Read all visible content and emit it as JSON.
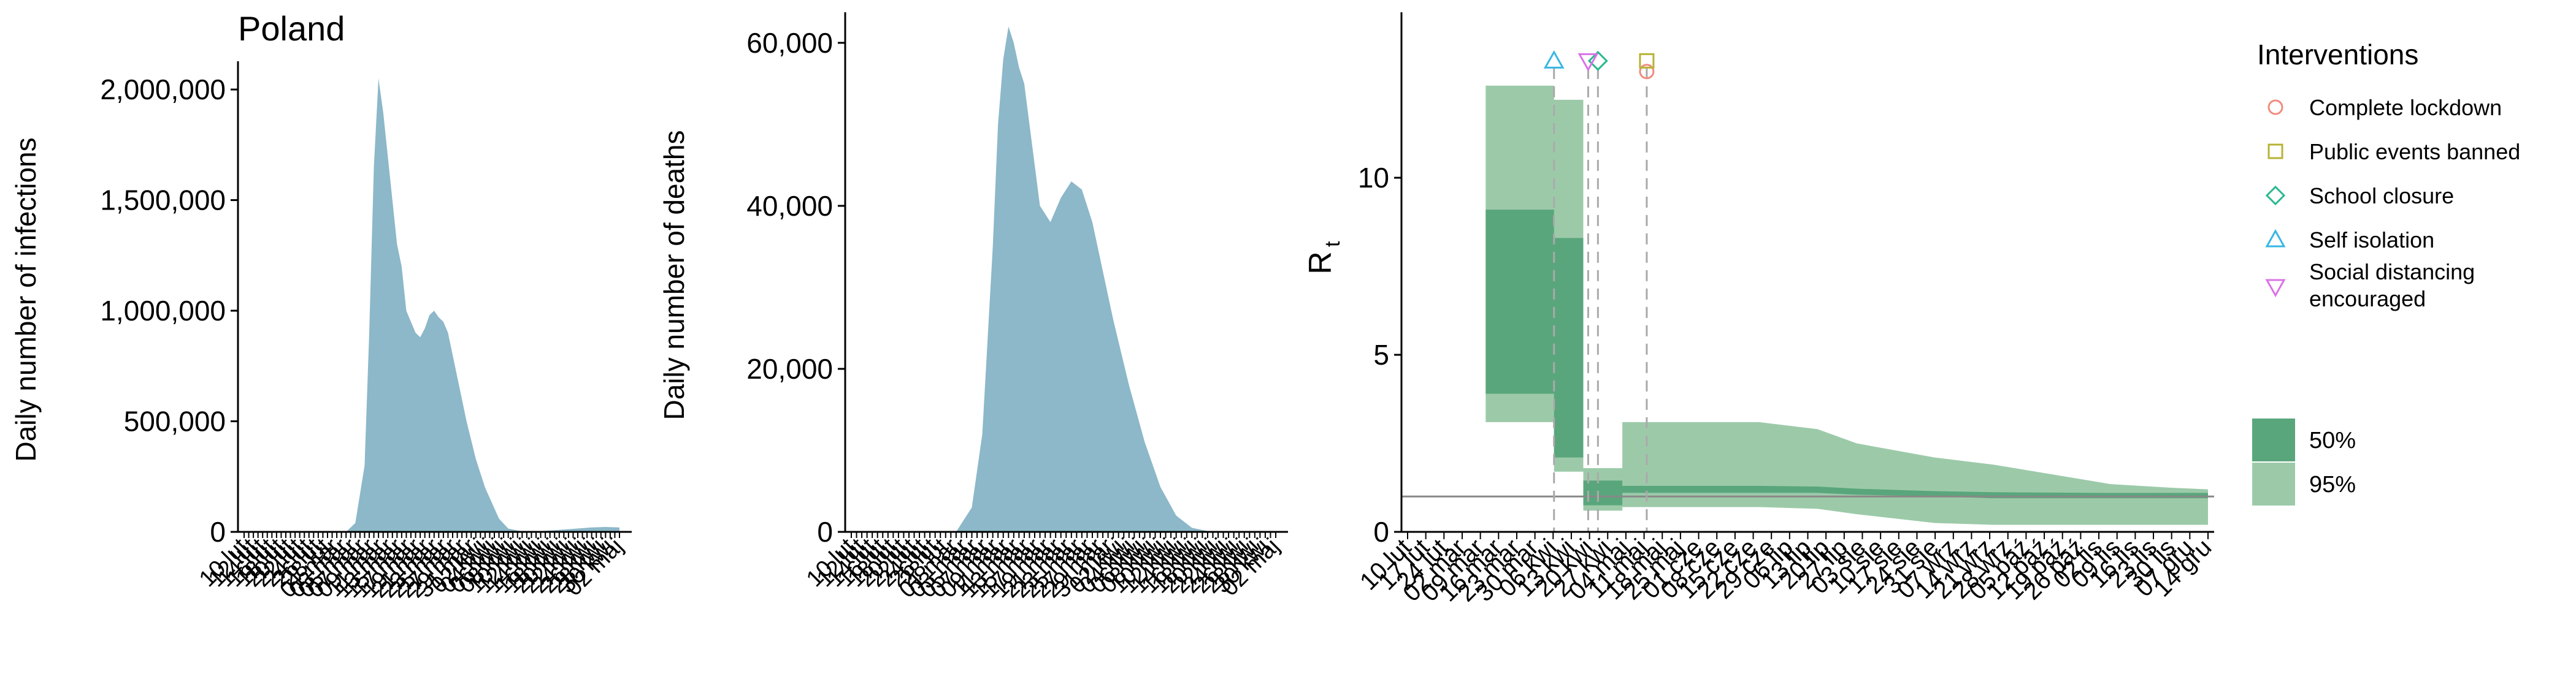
{
  "title": "Poland",
  "colors": {
    "infection_fill": "#8cb8c9",
    "deaths_fill": "#8cb8c9",
    "ci50": "#5aa67c",
    "ci95": "#9ccaa9",
    "baseline": "#888888",
    "guide": "#aaaaaa",
    "lockdown": "#f08c7c",
    "events": "#b7b335",
    "school": "#29b890",
    "isolation": "#38b6e4",
    "distancing": "#d973e6"
  },
  "chart_data": [
    {
      "type": "area",
      "name": "infections",
      "xlabel": "",
      "ylabel": "Daily number of infections",
      "ylim": [
        0,
        2100000
      ],
      "yticks": [
        0,
        500000,
        1000000,
        1500000,
        2000000
      ],
      "ytick_labels": [
        "0",
        "500,000",
        "1,000,000",
        "1,500,000",
        "2,000,000"
      ],
      "n_days": 82,
      "x_points": [
        0,
        22,
        24,
        26,
        27,
        28,
        29,
        30,
        31,
        32,
        33,
        34,
        35,
        36,
        37,
        38,
        39,
        40,
        41,
        42,
        43,
        44,
        45,
        46,
        47,
        48,
        50,
        52,
        55,
        57,
        60,
        62,
        65,
        70,
        75,
        78,
        81
      ],
      "values": [
        0,
        0,
        40000,
        300000,
        900000,
        1650000,
        2050000,
        1900000,
        1700000,
        1500000,
        1300000,
        1200000,
        1000000,
        950000,
        900000,
        880000,
        920000,
        980000,
        1000000,
        970000,
        950000,
        900000,
        800000,
        700000,
        600000,
        500000,
        330000,
        200000,
        60000,
        15000,
        2000,
        2000,
        5000,
        12000,
        20000,
        22000,
        20000
      ],
      "tick_labels": [
        "10 lut",
        "12 lut",
        "14 lut",
        "16 lut",
        "18 lut",
        "20 lut",
        "22 lut",
        "24 lut",
        "26 lut",
        "28 lut",
        "01 mar",
        "03 mar",
        "05 mar",
        "07 mar",
        "09 mar",
        "11 mar",
        "13 mar",
        "15 mar",
        "17 mar",
        "19 mar",
        "21 mar",
        "23 mar",
        "25 mar",
        "27 mar",
        "29 mar",
        "31 mar",
        "02 kwi",
        "04 kwi",
        "06 kwi",
        "08 kwi",
        "10 kwi",
        "12 kwi",
        "14 kwi",
        "16 kwi",
        "18 kwi",
        "20 kwi",
        "22 kwi",
        "24 kwi",
        "26 kwi",
        "28 kwi",
        "30 kwi",
        "02 maj"
      ]
    },
    {
      "type": "area",
      "name": "deaths",
      "xlabel": "",
      "ylabel": "Daily number of deaths",
      "ylim": [
        0,
        63000
      ],
      "yticks": [
        0,
        20000,
        40000,
        60000
      ],
      "ytick_labels": [
        "0",
        "20,000",
        "40,000",
        "60,000"
      ],
      "n_days": 82,
      "x_points": [
        0,
        20,
        23,
        25,
        27,
        28,
        29,
        30,
        31,
        32,
        33,
        34,
        35,
        36,
        38,
        40,
        42,
        44,
        46,
        48,
        50,
        53,
        56,
        59,
        62,
        65,
        68,
        72,
        76,
        81
      ],
      "values": [
        0,
        0,
        3000,
        12000,
        35000,
        50000,
        58000,
        62000,
        60000,
        57000,
        55000,
        50000,
        45000,
        40000,
        38000,
        41000,
        43000,
        42000,
        38000,
        32000,
        26000,
        18000,
        11000,
        5500,
        2000,
        500,
        100,
        50,
        20,
        0
      ],
      "tick_labels": [
        "10 lut",
        "12 lut",
        "14 lut",
        "16 lut",
        "18 lut",
        "20 lut",
        "22 lut",
        "24 lut",
        "26 lut",
        "28 lut",
        "01 mar",
        "03 mar",
        "05 mar",
        "07 mar",
        "09 mar",
        "11 mar",
        "13 mar",
        "15 mar",
        "17 mar",
        "19 mar",
        "21 mar",
        "23 mar",
        "25 mar",
        "27 mar",
        "29 mar",
        "31 mar",
        "02 kwi",
        "04 kwi",
        "06 kwi",
        "08 kwi",
        "10 kwi",
        "12 kwi",
        "14 kwi",
        "16 kwi",
        "18 kwi",
        "20 kwi",
        "22 kwi",
        "24 kwi",
        "26 kwi",
        "28 kwi",
        "30 kwi",
        "02 maj"
      ]
    },
    {
      "type": "area",
      "name": "rt",
      "xlabel": "",
      "ylabel": "R",
      "ylabel_sub": "t",
      "ylim": [
        0,
        14.5
      ],
      "yticks": [
        0,
        5,
        10
      ],
      "ytick_labels": [
        "0",
        "5",
        "10"
      ],
      "baseline": 1,
      "x_min": 0,
      "x_max": 82,
      "tick_labels": [
        "10 lut",
        "17 lut",
        "24 lut",
        "02 mar",
        "09 mar",
        "16 mar",
        "23 mar",
        "30 mar",
        "06 kwi",
        "13 kwi",
        "20 kwi",
        "27 kwi",
        "04 maj",
        "11 maj",
        "18 maj",
        "25 maj",
        "01 cze",
        "08 cze",
        "15 cze",
        "22 cze",
        "29 cze",
        "06 lip",
        "13 lip",
        "20 lip",
        "27 lip",
        "03 sie",
        "10 sie",
        "17 sie",
        "24 sie",
        "31 sie",
        "07 wrz",
        "14 wrz",
        "21 wrz",
        "28 wrz",
        "05 paź",
        "12 paź",
        "19 paź",
        "26 paź",
        "02 lis",
        "09 lis",
        "16 lis",
        "23 lis",
        "30 lis",
        "07 gru",
        "14 gru"
      ],
      "ci95": {
        "x": [
          8,
          15,
          15,
          18,
          18,
          22,
          22,
          30,
          36,
          42,
          46,
          54,
          60,
          72,
          78,
          82
        ],
        "low": [
          3.1,
          3.1,
          1.7,
          1.7,
          0.6,
          0.6,
          0.7,
          0.7,
          0.7,
          0.65,
          0.5,
          0.25,
          0.2,
          0.2,
          0.2,
          0.2
        ],
        "high": [
          12.6,
          12.6,
          12.2,
          12.2,
          1.8,
          1.8,
          3.1,
          3.1,
          3.1,
          2.9,
          2.5,
          2.1,
          1.9,
          1.35,
          1.25,
          1.2
        ]
      },
      "ci50": {
        "x": [
          8,
          15,
          15,
          18,
          18,
          22,
          22,
          30,
          36,
          42,
          46,
          54,
          60,
          72,
          78,
          82
        ],
        "low": [
          3.9,
          3.9,
          2.1,
          2.1,
          0.75,
          0.75,
          1.1,
          1.1,
          1.1,
          1.1,
          1.05,
          1.0,
          0.95,
          0.95,
          0.95,
          0.95
        ],
        "high": [
          9.1,
          9.1,
          8.3,
          8.3,
          1.45,
          1.45,
          1.3,
          1.3,
          1.3,
          1.28,
          1.22,
          1.15,
          1.12,
          1.1,
          1.1,
          1.1
        ]
      },
      "interventions": [
        {
          "name": "Complete lockdown",
          "day": 24.5,
          "shape": "circle",
          "y": 13.0
        },
        {
          "name": "Public events banned",
          "day": 24.5,
          "shape": "square",
          "y": 13.3
        },
        {
          "name": "School closure",
          "day": 19.5,
          "shape": "diamond",
          "y": 13.3
        },
        {
          "name": "Self isolation",
          "day": 15,
          "shape": "triangle-up",
          "y": 13.3
        },
        {
          "name": "Social distancing\n encouraged",
          "day": 18.5,
          "shape": "triangle-down",
          "y": 13.3
        }
      ]
    }
  ],
  "legend": {
    "title": "Interventions",
    "items": [
      {
        "label": "Complete lockdown",
        "shape": "circle",
        "color_key": "lockdown"
      },
      {
        "label": "Public events banned",
        "shape": "square",
        "color_key": "events"
      },
      {
        "label": "School closure",
        "shape": "diamond",
        "color_key": "school"
      },
      {
        "label": "Self isolation",
        "shape": "triangle-up",
        "color_key": "isolation"
      },
      {
        "label": "Social distancing",
        "label2": " encouraged",
        "shape": "triangle-down",
        "color_key": "distancing"
      }
    ],
    "ci_items": [
      {
        "label": "50%",
        "color_key": "ci50"
      },
      {
        "label": "95%",
        "color_key": "ci95"
      }
    ]
  }
}
